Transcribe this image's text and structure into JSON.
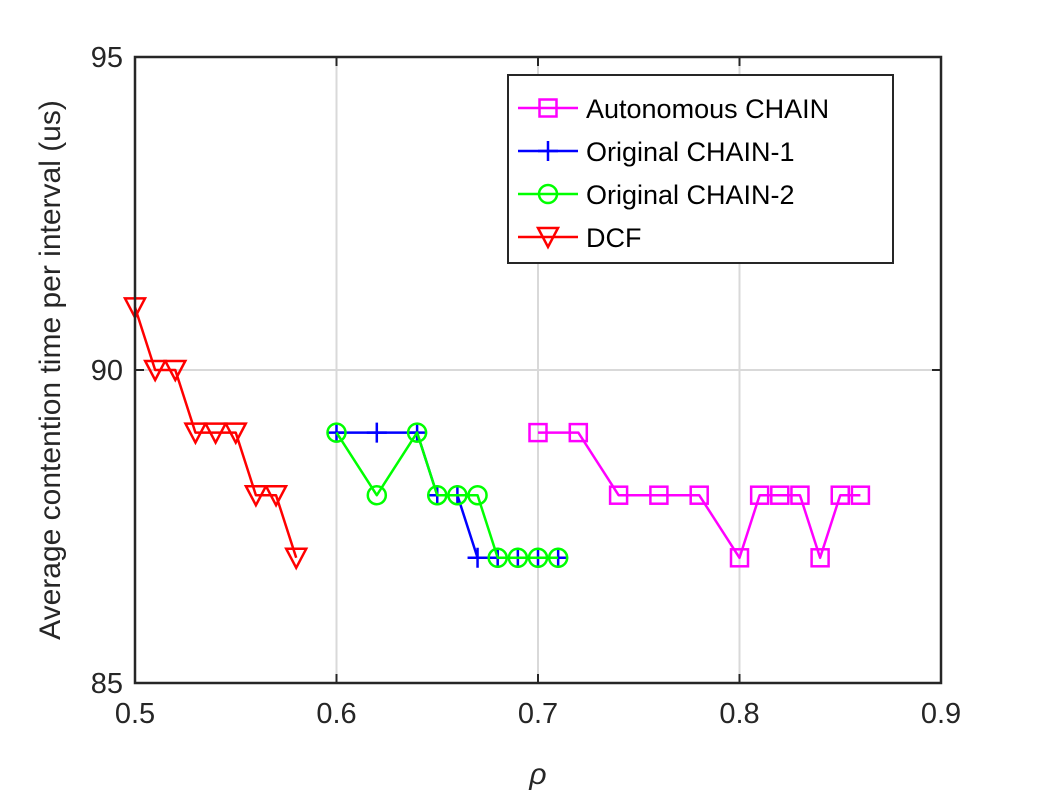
{
  "chart_data": {
    "type": "line",
    "xlabel": "ρ",
    "ylabel": "Average contention time per interval (us)",
    "xlim": [
      0.5,
      0.9
    ],
    "ylim": [
      85,
      95
    ],
    "xticks": [
      "0.5",
      "0.6",
      "0.7",
      "0.8",
      "0.9"
    ],
    "yticks": [
      "85",
      "90",
      "95"
    ],
    "grid": true,
    "legend_position": "top-right",
    "series": [
      {
        "name": "Autonomous CHAIN",
        "color": "#ff00ff",
        "marker": "square",
        "x": [
          0.7,
          0.72,
          0.74,
          0.76,
          0.78,
          0.8,
          0.81,
          0.82,
          0.83,
          0.84,
          0.85,
          0.86
        ],
        "y": [
          89,
          89,
          88,
          88,
          88,
          87,
          88,
          88,
          88,
          87,
          88,
          88
        ]
      },
      {
        "name": "Original CHAIN-1",
        "color": "#0000ff",
        "marker": "plus",
        "x": [
          0.6,
          0.62,
          0.64,
          0.65,
          0.66,
          0.67,
          0.68,
          0.69,
          0.7,
          0.71
        ],
        "y": [
          89,
          89,
          89,
          88,
          88,
          87,
          87,
          87,
          87,
          87
        ]
      },
      {
        "name": "Original CHAIN-2",
        "color": "#00ff00",
        "marker": "circle",
        "x": [
          0.6,
          0.62,
          0.64,
          0.65,
          0.66,
          0.67,
          0.68,
          0.69,
          0.7,
          0.71
        ],
        "y": [
          89,
          88,
          89,
          88,
          88,
          88,
          87,
          87,
          87,
          87
        ]
      },
      {
        "name": "DCF",
        "color": "#ff0000",
        "marker": "triangle-down",
        "x": [
          0.5,
          0.51,
          0.52,
          0.53,
          0.54,
          0.55,
          0.56,
          0.57,
          0.58
        ],
        "y": [
          91,
          90,
          90,
          89,
          89,
          89,
          88,
          88,
          87
        ]
      }
    ]
  }
}
